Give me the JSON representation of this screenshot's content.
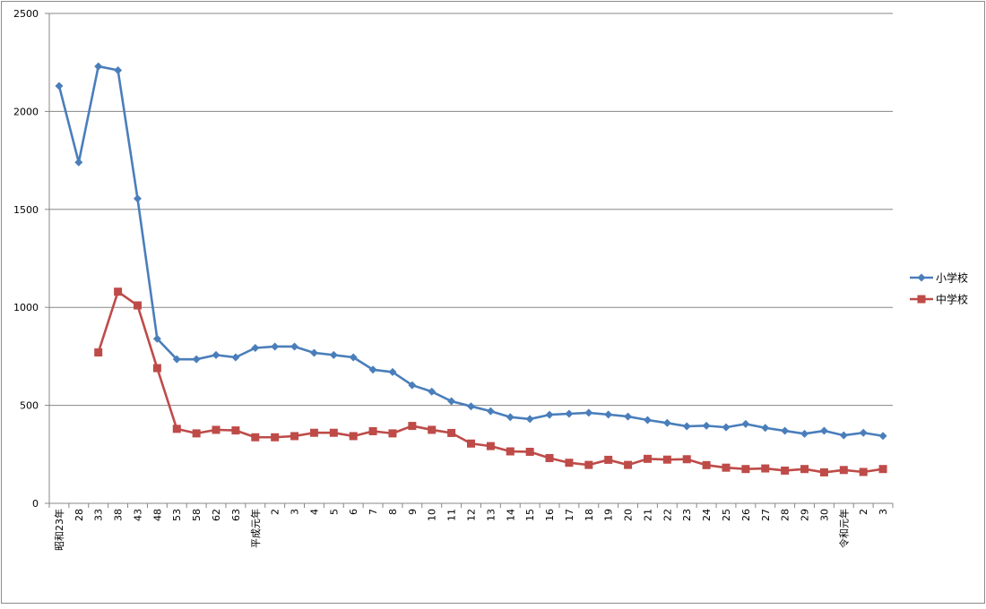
{
  "chart_data": {
    "type": "line",
    "title": "",
    "xlabel": "",
    "ylabel": "",
    "ylim": [
      0,
      2500
    ],
    "yticks": [
      "0",
      "500",
      "1000",
      "1500",
      "2000",
      "2500"
    ],
    "grid": true,
    "legend_position": "right",
    "categories": [
      "昭和23年",
      "28",
      "33",
      "38",
      "43",
      "48",
      "53",
      "58",
      "62",
      "63",
      "平成元年",
      "2",
      "3",
      "4",
      "5",
      "6",
      "7",
      "8",
      "9",
      "10",
      "11",
      "12",
      "13",
      "14",
      "15",
      "16",
      "17",
      "18",
      "19",
      "20",
      "21",
      "22",
      "23",
      "24",
      "25",
      "26",
      "27",
      "28",
      "29",
      "30",
      "令和元年",
      "2",
      "3"
    ],
    "series": [
      {
        "name": "小学校",
        "color": "#4a7ebb",
        "marker": "diamond",
        "values": [
          2130,
          1740,
          2230,
          2210,
          1555,
          840,
          735,
          735,
          757,
          745,
          793,
          800,
          800,
          768,
          757,
          745,
          682,
          670,
          603,
          570,
          521,
          495,
          470,
          440,
          430,
          452,
          457,
          462,
          453,
          443,
          425,
          410,
          393,
          396,
          388,
          405,
          385,
          370,
          355,
          370,
          347,
          360,
          344
        ]
      },
      {
        "name": "中学校",
        "color": "#be4b48",
        "marker": "square",
        "values": [
          null,
          null,
          770,
          1080,
          1010,
          690,
          380,
          357,
          375,
          372,
          337,
          337,
          343,
          360,
          360,
          343,
          368,
          357,
          395,
          375,
          359,
          305,
          292,
          265,
          263,
          231,
          207,
          196,
          222,
          196,
          227,
          223,
          225,
          195,
          182,
          175,
          178,
          167,
          175,
          158,
          170,
          160,
          175
        ]
      }
    ]
  }
}
